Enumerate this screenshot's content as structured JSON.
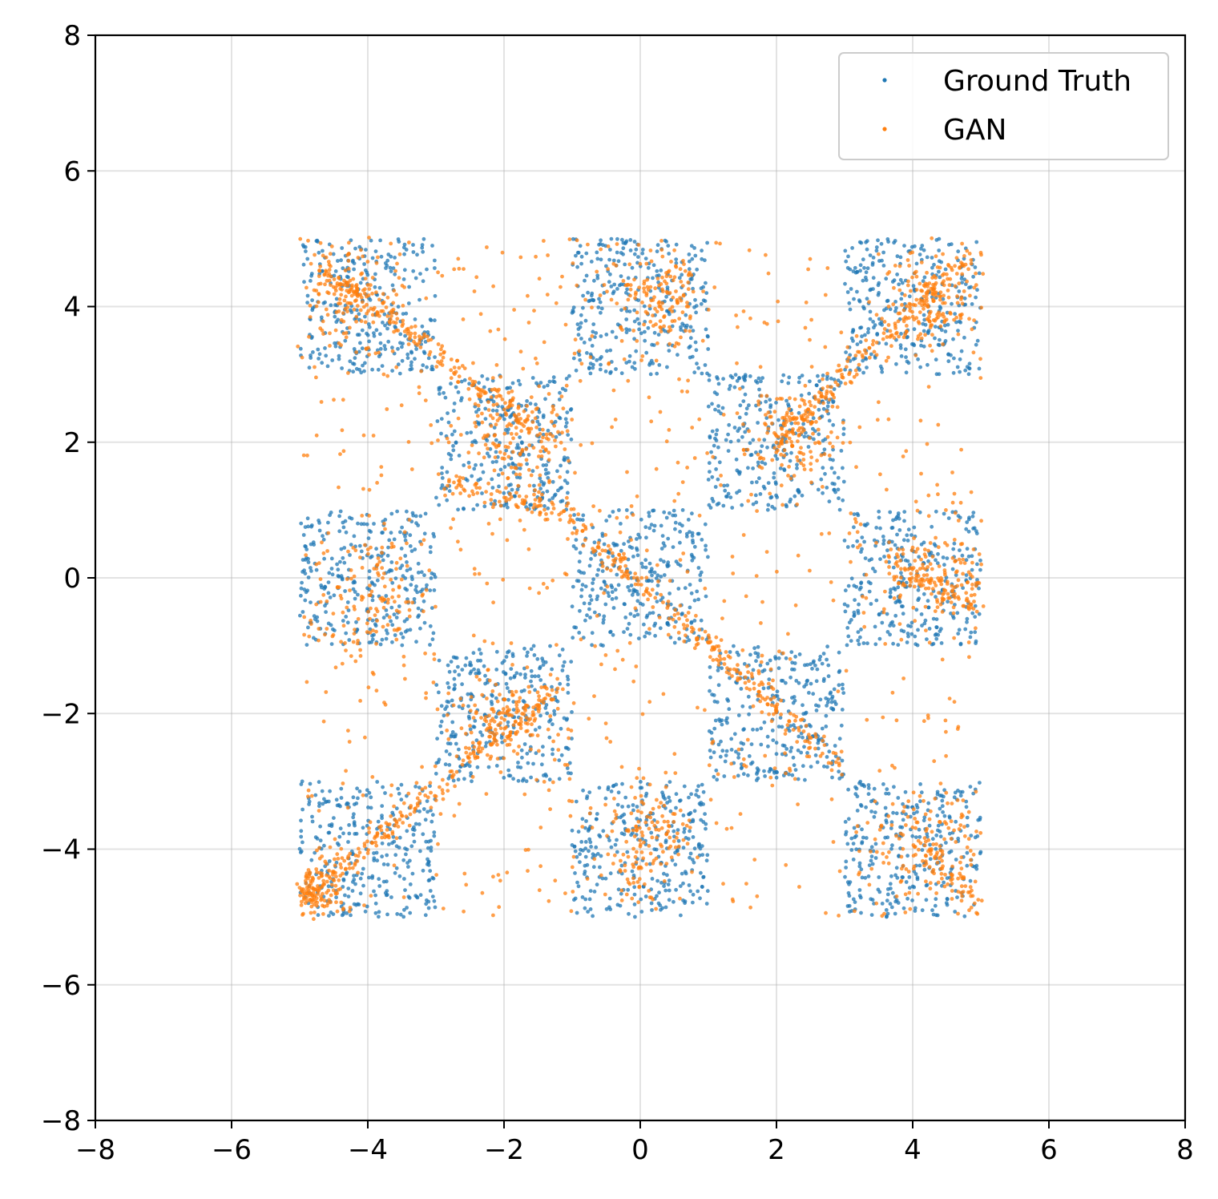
{
  "chart_data": {
    "type": "scatter",
    "title": "",
    "xlabel": "",
    "ylabel": "",
    "xlim": [
      -8,
      8
    ],
    "ylim": [
      -8,
      8
    ],
    "xticks": [
      -8,
      -6,
      -4,
      -2,
      0,
      2,
      4,
      6,
      8
    ],
    "yticks": [
      -8,
      -6,
      -4,
      -2,
      0,
      2,
      4,
      6,
      8
    ],
    "xtick_labels": [
      "−8",
      "−6",
      "−4",
      "−2",
      "0",
      "2",
      "4",
      "6",
      "8"
    ],
    "ytick_labels": [
      "−8",
      "−6",
      "−4",
      "−2",
      "0",
      "2",
      "4",
      "6",
      "8"
    ],
    "grid": true,
    "legend_position": "top-right",
    "series": [
      {
        "name": "Ground Truth",
        "color": "#1f77b4",
        "distribution": "uniform over checkerboard squares of side 2",
        "squares": [
          {
            "x": [
              -5,
              -3
            ],
            "y": [
              3,
              5
            ]
          },
          {
            "x": [
              -1,
              1
            ],
            "y": [
              3,
              5
            ]
          },
          {
            "x": [
              3,
              5
            ],
            "y": [
              3,
              5
            ]
          },
          {
            "x": [
              -3,
              -1
            ],
            "y": [
              1,
              3
            ]
          },
          {
            "x": [
              1,
              3
            ],
            "y": [
              1,
              3
            ]
          },
          {
            "x": [
              -5,
              -3
            ],
            "y": [
              -1,
              1
            ]
          },
          {
            "x": [
              -1,
              1
            ],
            "y": [
              -1,
              1
            ]
          },
          {
            "x": [
              3,
              5
            ],
            "y": [
              -1,
              1
            ]
          },
          {
            "x": [
              -3,
              -1
            ],
            "y": [
              -3,
              -1
            ]
          },
          {
            "x": [
              1,
              3
            ],
            "y": [
              -3,
              -1
            ]
          },
          {
            "x": [
              -5,
              -3
            ],
            "y": [
              -5,
              -3
            ]
          },
          {
            "x": [
              -1,
              1
            ],
            "y": [
              -5,
              -3
            ]
          },
          {
            "x": [
              3,
              5
            ],
            "y": [
              -5,
              -3
            ]
          }
        ],
        "points_per_square": 300
      },
      {
        "name": "GAN",
        "color": "#ff7f0e",
        "clusters": [
          {
            "x": -4.3,
            "y": 4.1,
            "spread": 0.4
          },
          {
            "x": 0.3,
            "y": 4.1,
            "spread": 0.35
          },
          {
            "x": 4.3,
            "y": 4.1,
            "spread": 0.35
          },
          {
            "x": -1.8,
            "y": 2.1,
            "spread": 0.4
          },
          {
            "x": 2.2,
            "y": 2.1,
            "spread": 0.35
          },
          {
            "x": -4.0,
            "y": -0.3,
            "spread": 0.45
          },
          {
            "x": 4.3,
            "y": 0.1,
            "spread": 0.4
          },
          {
            "x": -2.0,
            "y": -2.1,
            "spread": 0.35
          },
          {
            "x": 0.1,
            "y": -3.9,
            "spread": 0.4
          },
          {
            "x": 4.2,
            "y": -4.0,
            "spread": 0.45
          },
          {
            "x": -4.7,
            "y": -4.6,
            "spread": 0.25
          }
        ],
        "line_segments": [
          {
            "from": [
              -4.8,
              4.7
            ],
            "to": [
              -1.3,
              2.0
            ]
          },
          {
            "from": [
              -4.9,
              -4.7
            ],
            "to": [
              -1.2,
              -1.6
            ]
          },
          {
            "from": [
              -1.0,
              0.8
            ],
            "to": [
              3.0,
              -2.8
            ]
          },
          {
            "from": [
              2.0,
              2.0
            ],
            "to": [
              4.9,
              4.8
            ]
          },
          {
            "from": [
              3.6,
              0.3
            ],
            "to": [
              4.95,
              -0.4
            ]
          },
          {
            "from": [
              4.2,
              -4.0
            ],
            "to": [
              4.95,
              -4.9
            ]
          },
          {
            "from": [
              -2.8,
              1.4
            ],
            "to": [
              -1.0,
              0.9
            ]
          }
        ],
        "noise_region": {
          "x": [
            -5,
            5
          ],
          "y": [
            -5,
            5
          ]
        }
      }
    ]
  }
}
